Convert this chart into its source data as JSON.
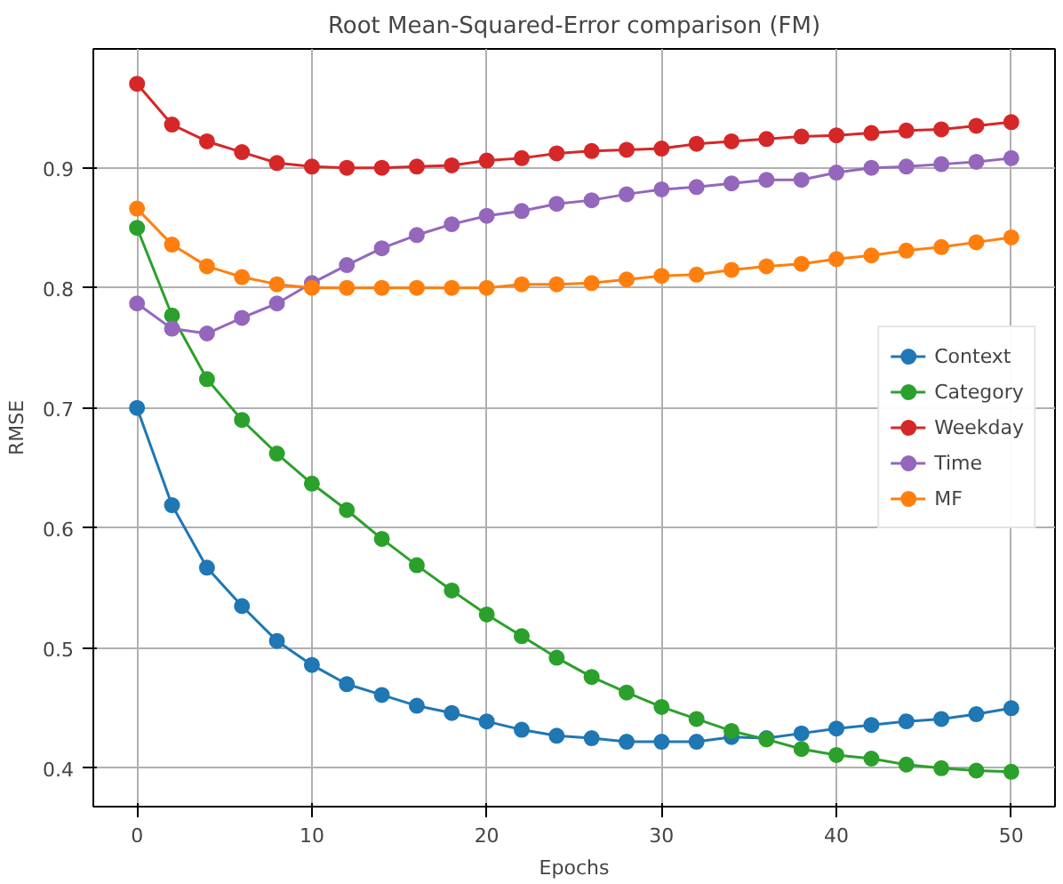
{
  "chart_data": {
    "type": "line",
    "title": "Root Mean-Squared-Error comparison (FM)",
    "xlabel": "Epochs",
    "ylabel": "RMSE",
    "x": [
      0,
      2,
      4,
      6,
      8,
      10,
      12,
      14,
      16,
      18,
      20,
      22,
      24,
      26,
      28,
      30,
      32,
      34,
      36,
      38,
      40,
      42,
      44,
      46,
      48,
      50
    ],
    "xlim": [
      -2.5,
      52.5
    ],
    "xticks": [
      0,
      10,
      20,
      30,
      40,
      50
    ],
    "ylim": [
      0.368,
      0.999
    ],
    "yticks": [
      0.4,
      0.5,
      0.6,
      0.7,
      0.8,
      0.9
    ],
    "grid": true,
    "legend": "right",
    "marker": "circle",
    "line_style": "solid",
    "series": [
      {
        "name": "Context",
        "color": "#1f77b4",
        "values": [
          0.7,
          0.619,
          0.567,
          0.535,
          0.506,
          0.486,
          0.47,
          0.461,
          0.452,
          0.446,
          0.439,
          0.432,
          0.427,
          0.425,
          0.422,
          0.422,
          0.422,
          0.426,
          0.425,
          0.429,
          0.433,
          0.436,
          0.439,
          0.441,
          0.445,
          0.45
        ]
      },
      {
        "name": "Category",
        "color": "#2ca02c",
        "values": [
          0.85,
          0.777,
          0.724,
          0.69,
          0.662,
          0.637,
          0.615,
          0.591,
          0.569,
          0.548,
          0.528,
          0.51,
          0.492,
          0.476,
          0.463,
          0.451,
          0.441,
          0.431,
          0.424,
          0.416,
          0.411,
          0.408,
          0.403,
          0.4,
          0.398,
          0.397
        ]
      },
      {
        "name": "Weekday",
        "color": "#d62728",
        "values": [
          0.97,
          0.936,
          0.922,
          0.913,
          0.904,
          0.901,
          0.9,
          0.9,
          0.901,
          0.902,
          0.906,
          0.908,
          0.912,
          0.914,
          0.915,
          0.916,
          0.92,
          0.922,
          0.924,
          0.926,
          0.927,
          0.929,
          0.931,
          0.932,
          0.935,
          0.938
        ]
      },
      {
        "name": "Time",
        "color": "#9467bd",
        "values": [
          0.787,
          0.766,
          0.762,
          0.775,
          0.787,
          0.804,
          0.819,
          0.833,
          0.844,
          0.853,
          0.86,
          0.864,
          0.87,
          0.873,
          0.878,
          0.882,
          0.884,
          0.887,
          0.89,
          0.89,
          0.896,
          0.9,
          0.901,
          0.903,
          0.905,
          0.908
        ]
      },
      {
        "name": "MF",
        "color": "#ff7f0e",
        "values": [
          0.866,
          0.836,
          0.818,
          0.809,
          0.803,
          0.8,
          0.8,
          0.8,
          0.8,
          0.8,
          0.8,
          0.803,
          0.803,
          0.804,
          0.807,
          0.81,
          0.811,
          0.815,
          0.818,
          0.82,
          0.824,
          0.827,
          0.831,
          0.834,
          0.838,
          0.842
        ]
      }
    ]
  }
}
